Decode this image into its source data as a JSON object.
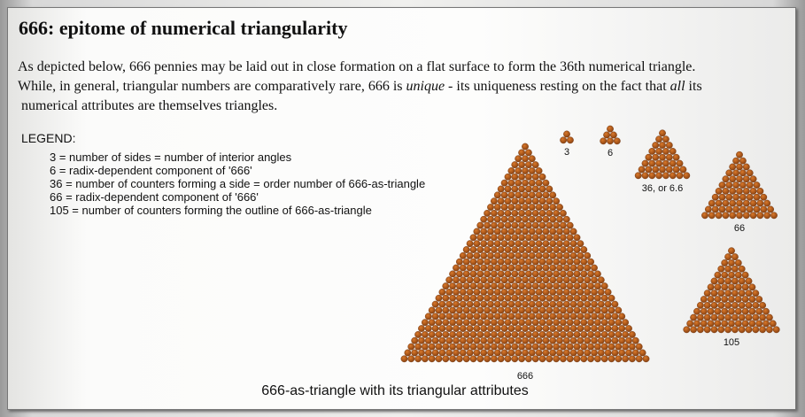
{
  "header": {
    "title": "666: epitome of numerical triangularity"
  },
  "intro": [
    [
      "As depicted below, 666 pennies may be laid out in close formation on a flat surface to form the 36th numerical triangle."
    ],
    [
      "While, in general, triangular numbers are comparatively rare, 666 is ",
      "unique",
      " - its uniqueness resting on the fact that ",
      "all",
      " its"
    ],
    [
      "numerical attributes are themselves triangles."
    ]
  ],
  "legend": {
    "title": "LEGEND:",
    "items": [
      "3 = number of sides = number of interior angles",
      "6 = radix-dependent component of '666'",
      "36 = number of counters forming a side = order number of 666-as-triangle",
      "66 = radix-dependent component of '666'",
      "105 = number of counters forming the outline of 666-as-triangle"
    ]
  },
  "figures": [
    {
      "label": "666"
    },
    {
      "label": "3"
    },
    {
      "label": "6"
    },
    {
      "label": "36, or 6.6"
    },
    {
      "label": "66"
    },
    {
      "label": "105"
    }
  ],
  "caption": "666-as-triangle with its triangular attributes"
}
